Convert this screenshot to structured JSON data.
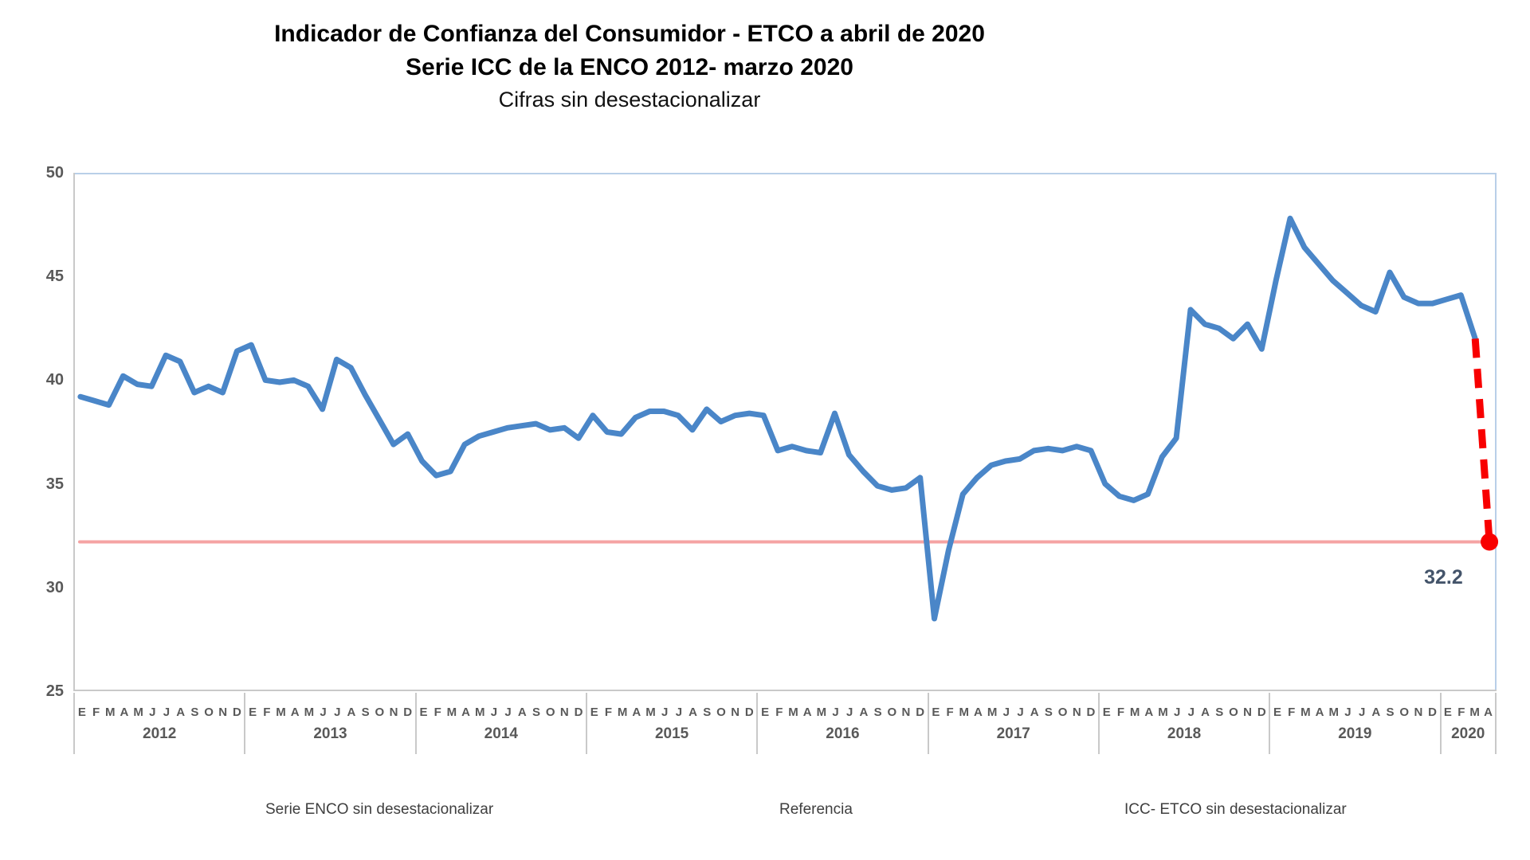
{
  "title": {
    "line1": "Indicador de Confianza del Consumidor - ETCO a abril de 2020",
    "line2": "Serie ICC de la ENCO 2012- marzo 2020",
    "line3": "Cifras sin desestacionalizar"
  },
  "annotation": {
    "value": "32.2"
  },
  "legend": {
    "items": [
      {
        "label": "Serie ENCO sin desestacionalizar",
        "swatch": "line-thick",
        "color": "#4a86c8"
      },
      {
        "label": "Referencia",
        "swatch": "line-thin",
        "color": "#f5a3a3"
      },
      {
        "label": "ICC- ETCO sin desestacionalizar",
        "swatch": "dot",
        "color": "#f80000"
      }
    ]
  },
  "chart_data": {
    "type": "line",
    "title": "Indicador de Confianza del Consumidor - ETCO a abril de 2020",
    "subtitle": "Serie ICC de la ENCO 2012- marzo 2020 / Cifras sin desestacionalizar",
    "grid": false,
    "legend_position": "bottom",
    "y_axis": {
      "min": 25,
      "max": 50,
      "ticks": [
        50,
        45,
        40,
        35,
        30,
        25
      ]
    },
    "years": [
      {
        "label": "2012",
        "months": [
          "E",
          "F",
          "M",
          "A",
          "M",
          "J",
          "J",
          "A",
          "S",
          "O",
          "N",
          "D"
        ]
      },
      {
        "label": "2013",
        "months": [
          "E",
          "F",
          "M",
          "A",
          "M",
          "J",
          "J",
          "A",
          "S",
          "O",
          "N",
          "D"
        ]
      },
      {
        "label": "2014",
        "months": [
          "E",
          "F",
          "M",
          "A",
          "M",
          "J",
          "J",
          "A",
          "S",
          "O",
          "N",
          "D"
        ]
      },
      {
        "label": "2015",
        "months": [
          "E",
          "F",
          "M",
          "A",
          "M",
          "J",
          "J",
          "A",
          "S",
          "O",
          "N",
          "D"
        ]
      },
      {
        "label": "2016",
        "months": [
          "E",
          "F",
          "M",
          "A",
          "M",
          "J",
          "J",
          "A",
          "S",
          "O",
          "N",
          "D"
        ]
      },
      {
        "label": "2017",
        "months": [
          "E",
          "F",
          "M",
          "A",
          "M",
          "J",
          "J",
          "A",
          "S",
          "O",
          "N",
          "D"
        ]
      },
      {
        "label": "2018",
        "months": [
          "E",
          "F",
          "M",
          "A",
          "M",
          "J",
          "J",
          "A",
          "S",
          "O",
          "N",
          "D"
        ]
      },
      {
        "label": "2019",
        "months": [
          "E",
          "F",
          "M",
          "A",
          "M",
          "J",
          "J",
          "A",
          "S",
          "O",
          "N",
          "D"
        ]
      },
      {
        "label": "2020",
        "months": [
          "E",
          "F",
          "M",
          "A"
        ]
      }
    ],
    "series": [
      {
        "name": "Serie ENCO sin desestacionalizar",
        "color": "#4a86c8",
        "start": "Enero 2012",
        "end": "Marzo 2020",
        "values": [
          39.2,
          39.0,
          38.8,
          40.2,
          39.8,
          39.7,
          41.2,
          40.9,
          39.4,
          39.7,
          39.4,
          41.4,
          41.7,
          40.0,
          39.9,
          40.0,
          39.7,
          38.6,
          41.0,
          40.6,
          39.3,
          38.1,
          36.9,
          37.4,
          36.1,
          35.4,
          35.6,
          36.9,
          37.3,
          37.5,
          37.7,
          37.8,
          37.9,
          37.6,
          37.7,
          37.2,
          38.3,
          37.5,
          37.4,
          38.2,
          38.5,
          38.5,
          38.3,
          37.6,
          38.6,
          38.0,
          38.3,
          38.4,
          38.3,
          36.6,
          36.8,
          36.6,
          36.5,
          38.4,
          36.4,
          35.6,
          34.9,
          34.7,
          34.8,
          35.3,
          28.5,
          31.8,
          34.5,
          35.3,
          35.9,
          36.1,
          36.2,
          36.6,
          36.7,
          36.6,
          36.8,
          36.6,
          35.0,
          34.4,
          34.2,
          34.5,
          36.3,
          37.2,
          43.4,
          42.7,
          42.5,
          42.0,
          42.7,
          41.5,
          44.8,
          47.8,
          46.4,
          45.6,
          44.8,
          44.2,
          43.6,
          43.3,
          45.2,
          44.0,
          43.7,
          43.7,
          43.9,
          44.1,
          42.0
        ]
      },
      {
        "name": "Referencia",
        "color": "#f5a3a3",
        "value": 32.2
      },
      {
        "name": "ICC- ETCO sin desestacionalizar",
        "color": "#f80000",
        "point": {
          "month": "Abril 2020",
          "value": 32.2
        },
        "annotation": "32.2"
      }
    ]
  }
}
